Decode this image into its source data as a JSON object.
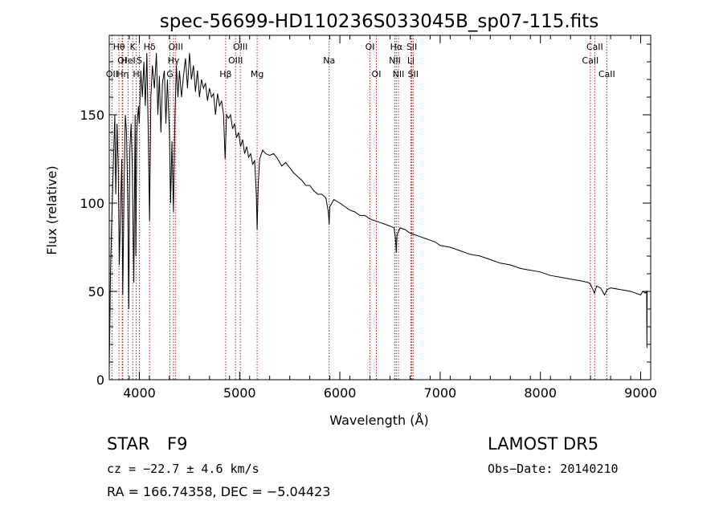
{
  "chart_data": {
    "type": "line",
    "title": "spec-56699-HD110236S033045B_sp07-115.fits",
    "xlabel": "Wavelength (Å)",
    "ylabel": "Flux (relative)",
    "xlim": [
      3700,
      9100
    ],
    "ylim": [
      0,
      195
    ],
    "xticks": [
      4000,
      5000,
      6000,
      7000,
      8000,
      9000
    ],
    "yticks": [
      0,
      50,
      100,
      150
    ],
    "grid": false,
    "line_color": "#000000",
    "marker_color": "#b22222",
    "series": [
      {
        "values": [
          [
            3700,
            5
          ],
          [
            3712,
            60
          ],
          [
            3725,
            90
          ],
          [
            3740,
            120
          ],
          [
            3755,
            150
          ],
          [
            3765,
            105
          ],
          [
            3778,
            145
          ],
          [
            3790,
            120
          ],
          [
            3800,
            65
          ],
          [
            3812,
            95
          ],
          [
            3825,
            125
          ],
          [
            3835,
            48
          ],
          [
            3848,
            110
          ],
          [
            3860,
            150
          ],
          [
            3872,
            140
          ],
          [
            3885,
            100
          ],
          [
            3895,
            40
          ],
          [
            3905,
            130
          ],
          [
            3918,
            145
          ],
          [
            3930,
            120
          ],
          [
            3945,
            55
          ],
          [
            3958,
            150
          ],
          [
            3965,
            70
          ],
          [
            3975,
            140
          ],
          [
            3990,
            155
          ],
          [
            4000,
            145
          ],
          [
            4015,
            175
          ],
          [
            4030,
            160
          ],
          [
            4045,
            180
          ],
          [
            4060,
            155
          ],
          [
            4075,
            185
          ],
          [
            4090,
            135
          ],
          [
            4102,
            90
          ],
          [
            4115,
            160
          ],
          [
            4130,
            178
          ],
          [
            4150,
            165
          ],
          [
            4170,
            185
          ],
          [
            4185,
            150
          ],
          [
            4200,
            172
          ],
          [
            4215,
            140
          ],
          [
            4230,
            168
          ],
          [
            4250,
            175
          ],
          [
            4265,
            145
          ],
          [
            4280,
            170
          ],
          [
            4300,
            140
          ],
          [
            4312,
            100
          ],
          [
            4325,
            135
          ],
          [
            4340,
            95
          ],
          [
            4355,
            150
          ],
          [
            4370,
            178
          ],
          [
            4385,
            160
          ],
          [
            4400,
            175
          ],
          [
            4420,
            160
          ],
          [
            4440,
            172
          ],
          [
            4460,
            182
          ],
          [
            4480,
            165
          ],
          [
            4500,
            185
          ],
          [
            4520,
            170
          ],
          [
            4540,
            178
          ],
          [
            4560,
            163
          ],
          [
            4580,
            175
          ],
          [
            4600,
            160
          ],
          [
            4620,
            170
          ],
          [
            4640,
            165
          ],
          [
            4660,
            168
          ],
          [
            4680,
            158
          ],
          [
            4700,
            165
          ],
          [
            4720,
            160
          ],
          [
            4740,
            162
          ],
          [
            4760,
            150
          ],
          [
            4780,
            162
          ],
          [
            4800,
            155
          ],
          [
            4820,
            158
          ],
          [
            4840,
            150
          ],
          [
            4855,
            125
          ],
          [
            4870,
            150
          ],
          [
            4890,
            148
          ],
          [
            4910,
            150
          ],
          [
            4930,
            142
          ],
          [
            4950,
            145
          ],
          [
            4970,
            137
          ],
          [
            4990,
            140
          ],
          [
            5010,
            132
          ],
          [
            5030,
            136
          ],
          [
            5050,
            128
          ],
          [
            5070,
            132
          ],
          [
            5090,
            126
          ],
          [
            5110,
            128
          ],
          [
            5130,
            122
          ],
          [
            5150,
            124
          ],
          [
            5167,
            105
          ],
          [
            5175,
            85
          ],
          [
            5185,
            110
          ],
          [
            5200,
            125
          ],
          [
            5230,
            130
          ],
          [
            5260,
            128
          ],
          [
            5300,
            127
          ],
          [
            5340,
            128
          ],
          [
            5380,
            125
          ],
          [
            5420,
            121
          ],
          [
            5460,
            123
          ],
          [
            5500,
            120
          ],
          [
            5540,
            117
          ],
          [
            5580,
            115
          ],
          [
            5620,
            113
          ],
          [
            5660,
            110
          ],
          [
            5700,
            110
          ],
          [
            5740,
            107
          ],
          [
            5780,
            105
          ],
          [
            5820,
            105
          ],
          [
            5860,
            103
          ],
          [
            5885,
            95
          ],
          [
            5893,
            88
          ],
          [
            5900,
            98
          ],
          [
            5940,
            102
          ],
          [
            6000,
            100
          ],
          [
            6050,
            98
          ],
          [
            6100,
            96
          ],
          [
            6150,
            95
          ],
          [
            6200,
            93
          ],
          [
            6250,
            93
          ],
          [
            6300,
            91
          ],
          [
            6350,
            90
          ],
          [
            6400,
            89
          ],
          [
            6450,
            88
          ],
          [
            6500,
            87
          ],
          [
            6540,
            86
          ],
          [
            6555,
            80
          ],
          [
            6563,
            72
          ],
          [
            6570,
            82
          ],
          [
            6600,
            86
          ],
          [
            6650,
            85
          ],
          [
            6700,
            83
          ],
          [
            6750,
            82
          ],
          [
            6800,
            81
          ],
          [
            6850,
            80
          ],
          [
            6900,
            79
          ],
          [
            6950,
            78
          ],
          [
            7000,
            76
          ],
          [
            7100,
            75
          ],
          [
            7200,
            73
          ],
          [
            7300,
            71
          ],
          [
            7400,
            70
          ],
          [
            7500,
            68
          ],
          [
            7600,
            66
          ],
          [
            7700,
            65
          ],
          [
            7800,
            63
          ],
          [
            7900,
            62
          ],
          [
            8000,
            61
          ],
          [
            8100,
            59
          ],
          [
            8200,
            58
          ],
          [
            8300,
            57
          ],
          [
            8400,
            56
          ],
          [
            8480,
            55
          ],
          [
            8500,
            54
          ],
          [
            8540,
            49
          ],
          [
            8560,
            53
          ],
          [
            8600,
            52
          ],
          [
            8640,
            48
          ],
          [
            8665,
            51
          ],
          [
            8700,
            52
          ],
          [
            8800,
            51
          ],
          [
            8900,
            50
          ],
          [
            8950,
            49
          ],
          [
            9000,
            48
          ],
          [
            9020,
            50
          ],
          [
            9045,
            49
          ],
          [
            9060,
            50
          ],
          [
            9062,
            18
          ],
          [
            9065,
            50
          ],
          [
            9070,
            50
          ]
        ]
      }
    ],
    "line_markers": [
      {
        "label": "Hθ",
        "x": 3797,
        "row": 0
      },
      {
        "label": "OI",
        "x": 3829,
        "row": 1
      },
      {
        "label": "OII",
        "x": 3727,
        "row": 2
      },
      {
        "label": "K",
        "x": 3934,
        "row": 0
      },
      {
        "label": "HeI",
        "x": 3889,
        "row": 1
      },
      {
        "label": "Hη",
        "x": 3835,
        "row": 2
      },
      {
        "label": "S",
        "x": 4000,
        "row": 1
      },
      {
        "label": "H",
        "x": 3969,
        "row": 2
      },
      {
        "label": "Hδ",
        "x": 4102,
        "row": 0
      },
      {
        "label": "OIII",
        "x": 4363,
        "row": 0
      },
      {
        "label": "Hγ",
        "x": 4341,
        "row": 1
      },
      {
        "label": "G",
        "x": 4305,
        "row": 2
      },
      {
        "label": "OIII",
        "x": 5007,
        "row": 0
      },
      {
        "label": "OIII",
        "x": 4959,
        "row": 1
      },
      {
        "label": "Hβ",
        "x": 4861,
        "row": 2
      },
      {
        "label": "Mg",
        "x": 5175,
        "row": 2
      },
      {
        "label": "Na",
        "x": 5893,
        "row": 1
      },
      {
        "label": "OI",
        "x": 6300,
        "row": 0
      },
      {
        "label": "OI",
        "x": 6364,
        "row": 2
      },
      {
        "label": "Hα",
        "x": 6563,
        "row": 0
      },
      {
        "label": "NII",
        "x": 6548,
        "row": 1
      },
      {
        "label": "NII",
        "x": 6584,
        "row": 2
      },
      {
        "label": "SII",
        "x": 6717,
        "row": 0
      },
      {
        "label": "Li",
        "x": 6708,
        "row": 1
      },
      {
        "label": "SII",
        "x": 6731,
        "row": 2
      },
      {
        "label": "CaII",
        "x": 8542,
        "row": 0
      },
      {
        "label": "CaII",
        "x": 8498,
        "row": 1
      },
      {
        "label": "CaII",
        "x": 8662,
        "row": 2
      }
    ]
  },
  "info": {
    "object_class": "STAR",
    "subclass": "F9",
    "survey": "LAMOST DR5",
    "redshift_line": "cz = −22.7 ± 4.6 km/s",
    "obs_date": "Obs−Date: 20140210",
    "coords": "RA = 166.74358, DEC =  −5.04423"
  }
}
